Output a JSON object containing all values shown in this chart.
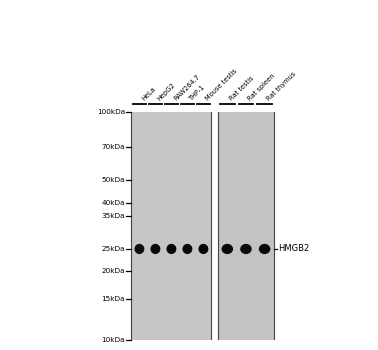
{
  "bg_color": "#ffffff",
  "gel_color1": "#c8c5c5",
  "gel_color2": "#c5c2c2",
  "border_color": "#444444",
  "mw_labels": [
    "100kDa",
    "70kDa",
    "50kDa",
    "40kDa",
    "35kDa",
    "25kDa",
    "20kDa",
    "15kDa",
    "10kDa"
  ],
  "mw_positions": [
    100,
    70,
    50,
    40,
    35,
    25,
    20,
    15,
    10
  ],
  "sample_labels": [
    "HeLa",
    "HepG2",
    "RAW264.7",
    "THP-1",
    "Mouse testis",
    "Rat testis",
    "Rat spleen",
    "Rat thymus"
  ],
  "band_label": "HMGB2",
  "band_mw": 25,
  "band_intensities_p1": [
    0.55,
    0.78,
    0.88,
    0.72,
    0.92
  ],
  "band_intensities_p2": [
    0.8,
    0.65,
    0.8
  ],
  "panel1_nlanes": 5,
  "panel2_nlanes": 3,
  "tick_color": "#000000",
  "label_color": "#000000",
  "band_dark": "#111111",
  "mw_log_min": 10,
  "mw_log_max": 100
}
